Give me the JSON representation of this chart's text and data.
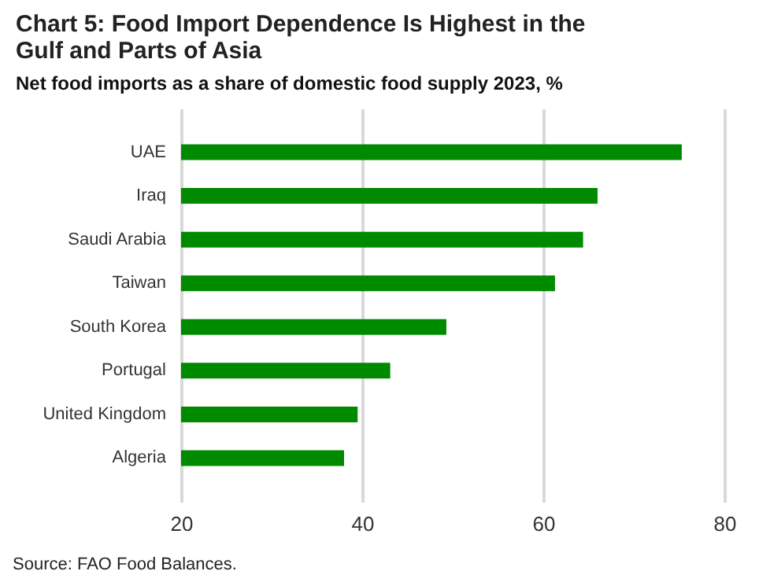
{
  "chart_data": {
    "type": "bar",
    "orientation": "horizontal",
    "title": [
      "Chart 5: Food Import Dependence  Is Highest in the",
      "Gulf and Parts of Asia"
    ],
    "subtitle": "Net food imports as a share of domestic food supply 2023, %",
    "categories": [
      "UAE",
      "Iraq",
      "Saudi Arabia",
      "Taiwan",
      "South Korea",
      "Portugal",
      "United Kingdom",
      "Algeria"
    ],
    "values": [
      75.3,
      66.0,
      64.4,
      61.3,
      49.3,
      43.1,
      39.5,
      38.0
    ],
    "color": "#008a00",
    "xlim": [
      20,
      80
    ],
    "xticks": [
      20,
      40,
      60,
      80
    ],
    "grid": "x",
    "annotations": [
      "Source: FAO Food Balances."
    ]
  }
}
